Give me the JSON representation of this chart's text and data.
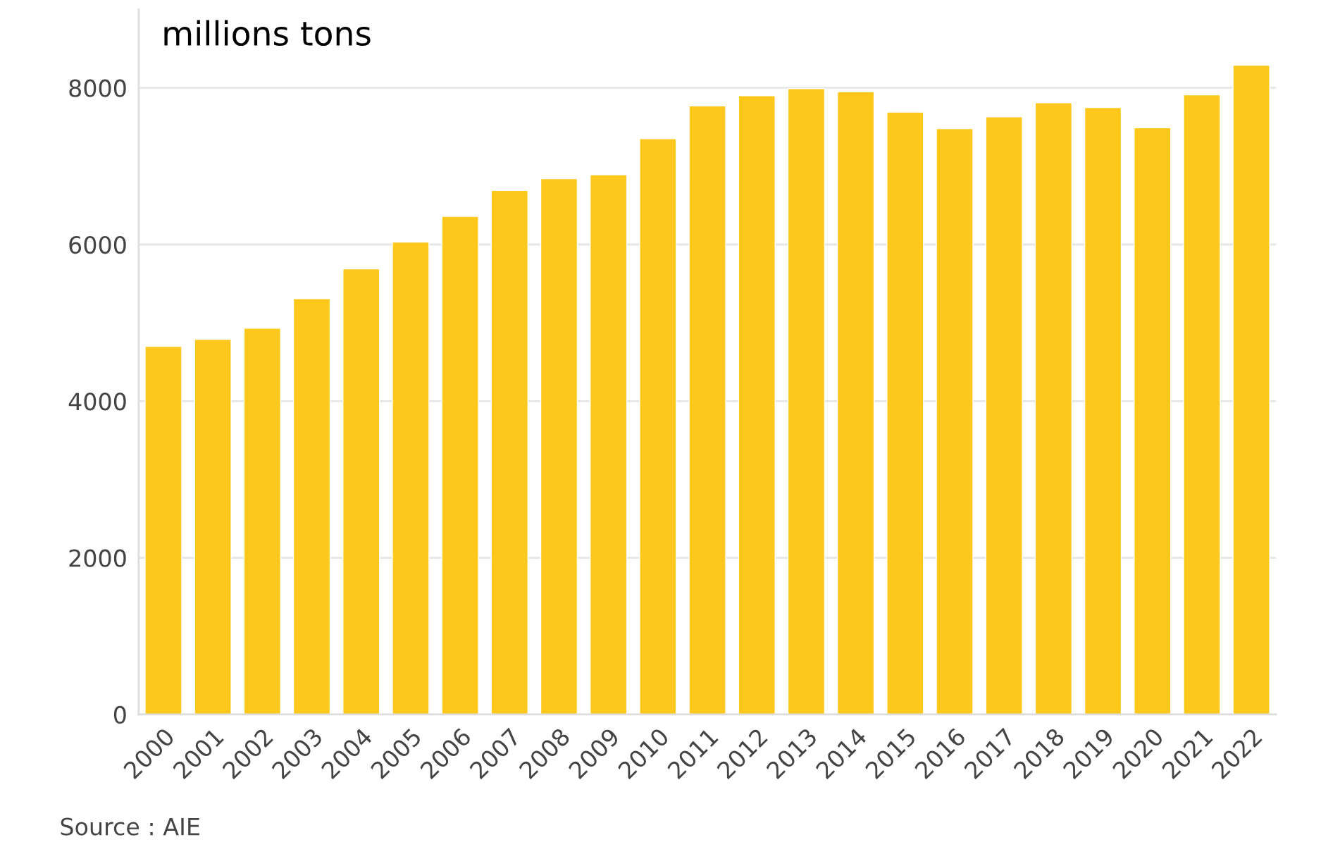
{
  "chart_data": {
    "type": "bar",
    "title": "millions tons",
    "categories": [
      "2000",
      "2001",
      "2002",
      "2003",
      "2004",
      "2005",
      "2006",
      "2007",
      "2008",
      "2009",
      "2010",
      "2011",
      "2012",
      "2013",
      "2014",
      "2015",
      "2016",
      "2017",
      "2018",
      "2019",
      "2020",
      "2021",
      "2022"
    ],
    "values": [
      4700,
      4790,
      4930,
      5310,
      5690,
      6030,
      6360,
      6690,
      6840,
      6890,
      7350,
      7770,
      7900,
      7990,
      7950,
      7690,
      7480,
      7630,
      7810,
      7750,
      7490,
      7910,
      8290
    ],
    "color": "#fdc81b",
    "ylim": [
      0,
      9000
    ],
    "yticks": [
      0,
      2000,
      4000,
      6000,
      8000
    ],
    "grid": "y",
    "annotations": [
      "Source : AIE"
    ]
  }
}
